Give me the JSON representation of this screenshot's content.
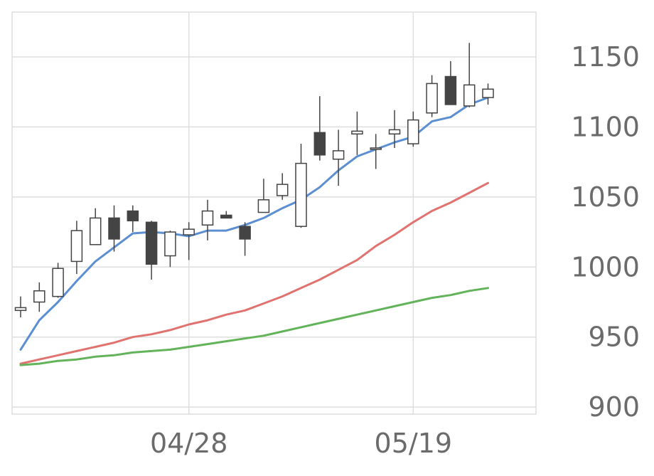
{
  "chart_data": {
    "type": "candlestick",
    "title": "",
    "xlabel": "",
    "ylabel": "",
    "x_tick_labels": [
      {
        "label": "04/28",
        "index": 9
      },
      {
        "label": "05/19",
        "index": 21
      }
    ],
    "y_ticks": [
      900,
      950,
      1000,
      1050,
      1100,
      1150
    ],
    "ylim": [
      895,
      1182
    ],
    "grid": true,
    "legend": "none",
    "candles": [
      {
        "open": 969,
        "high": 979,
        "low": 964,
        "close": 971
      },
      {
        "open": 975,
        "high": 989,
        "low": 968,
        "close": 983
      },
      {
        "open": 979,
        "high": 1003,
        "low": 978,
        "close": 999
      },
      {
        "open": 1004,
        "high": 1033,
        "low": 995,
        "close": 1026
      },
      {
        "open": 1016,
        "high": 1042,
        "low": 1016,
        "close": 1035
      },
      {
        "open": 1035,
        "high": 1044,
        "low": 1011,
        "close": 1020
      },
      {
        "open": 1040,
        "high": 1044,
        "low": 1025,
        "close": 1033
      },
      {
        "open": 1032,
        "high": 1033,
        "low": 991,
        "close": 1002
      },
      {
        "open": 1008,
        "high": 1026,
        "low": 1000,
        "close": 1025
      },
      {
        "open": 1023,
        "high": 1032,
        "low": 1005,
        "close": 1027
      },
      {
        "open": 1030,
        "high": 1048,
        "low": 1019,
        "close": 1040
      },
      {
        "open": 1037,
        "high": 1040,
        "low": 1035,
        "close": 1035
      },
      {
        "open": 1029,
        "high": 1032,
        "low": 1008,
        "close": 1020
      },
      {
        "open": 1039,
        "high": 1063,
        "low": 1039,
        "close": 1048
      },
      {
        "open": 1051,
        "high": 1067,
        "low": 1048,
        "close": 1059
      },
      {
        "open": 1029,
        "high": 1088,
        "low": 1028,
        "close": 1074
      },
      {
        "open": 1096,
        "high": 1122,
        "low": 1076,
        "close": 1080
      },
      {
        "open": 1077,
        "high": 1098,
        "low": 1058,
        "close": 1083
      },
      {
        "open": 1095,
        "high": 1111,
        "low": 1080,
        "close": 1097
      },
      {
        "open": 1084,
        "high": 1095,
        "low": 1070,
        "close": 1085
      },
      {
        "open": 1095,
        "high": 1112,
        "low": 1085,
        "close": 1098
      },
      {
        "open": 1088,
        "high": 1111,
        "low": 1086,
        "close": 1105
      },
      {
        "open": 1110,
        "high": 1137,
        "low": 1107,
        "close": 1131
      },
      {
        "open": 1136,
        "high": 1147,
        "low": 1116,
        "close": 1116
      },
      {
        "open": 1115,
        "high": 1160,
        "low": 1114,
        "close": 1130
      },
      {
        "open": 1121,
        "high": 1131,
        "low": 1116,
        "close": 1127
      }
    ],
    "series": [
      {
        "color": "#5b8fd1",
        "values": [
          941,
          962,
          975,
          990,
          1004,
          1014,
          1024,
          1025,
          1024,
          1022,
          1026,
          1026,
          1030,
          1035,
          1042,
          1048,
          1057,
          1069,
          1079,
          1084,
          1089,
          1093,
          1104,
          1107,
          1116,
          1121
        ]
      },
      {
        "color": "#e07370",
        "values": [
          931,
          934,
          937,
          940,
          943,
          946,
          950,
          952,
          955,
          959,
          962,
          966,
          969,
          974,
          979,
          985,
          991,
          998,
          1005,
          1015,
          1023,
          1032,
          1040,
          1046,
          1053,
          1060
        ]
      },
      {
        "color": "#62b35a",
        "values": [
          930,
          931,
          933,
          934,
          936,
          937,
          939,
          940,
          941,
          943,
          945,
          947,
          949,
          951,
          954,
          957,
          960,
          963,
          966,
          969,
          972,
          975,
          978,
          980,
          983,
          985
        ]
      }
    ],
    "colors": {
      "up_body": "#ffffff",
      "down_body": "#444444",
      "candle_border": "#444444",
      "grid": "#dedede",
      "tick_text": "#6b6b6b"
    }
  }
}
